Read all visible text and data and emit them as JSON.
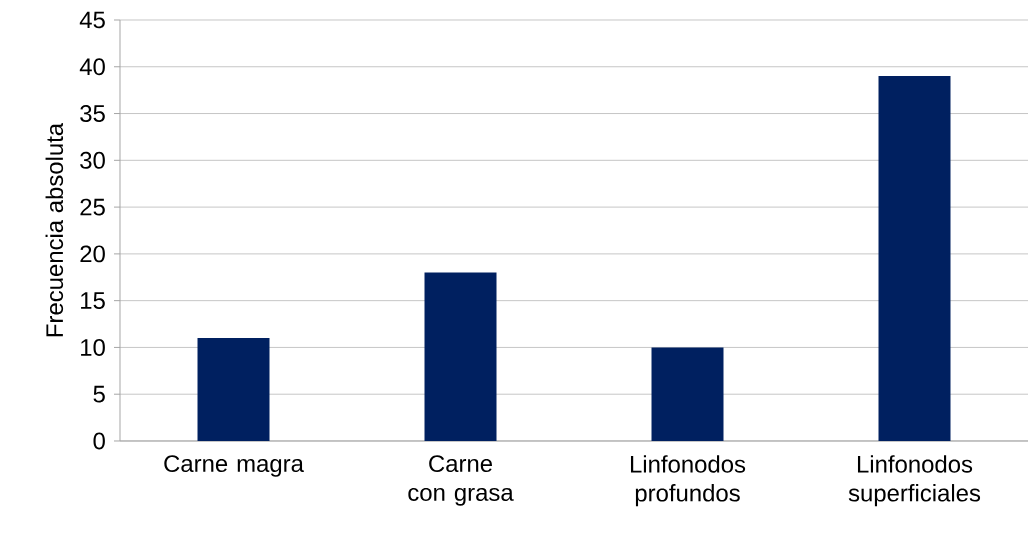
{
  "chart_data": {
    "type": "bar",
    "ylabel": "Frecuencia absoluta",
    "categories": [
      "Carne magra",
      "Carne con grasa",
      "Linfonodos profundos",
      "Linfonodos superficiales"
    ],
    "values": [
      11,
      18,
      10,
      39
    ],
    "color": "#002060",
    "ylim": [
      0,
      45
    ],
    "yticks": [
      0,
      5,
      10,
      15,
      20,
      25,
      30,
      35,
      40,
      45
    ],
    "grid": "y"
  }
}
